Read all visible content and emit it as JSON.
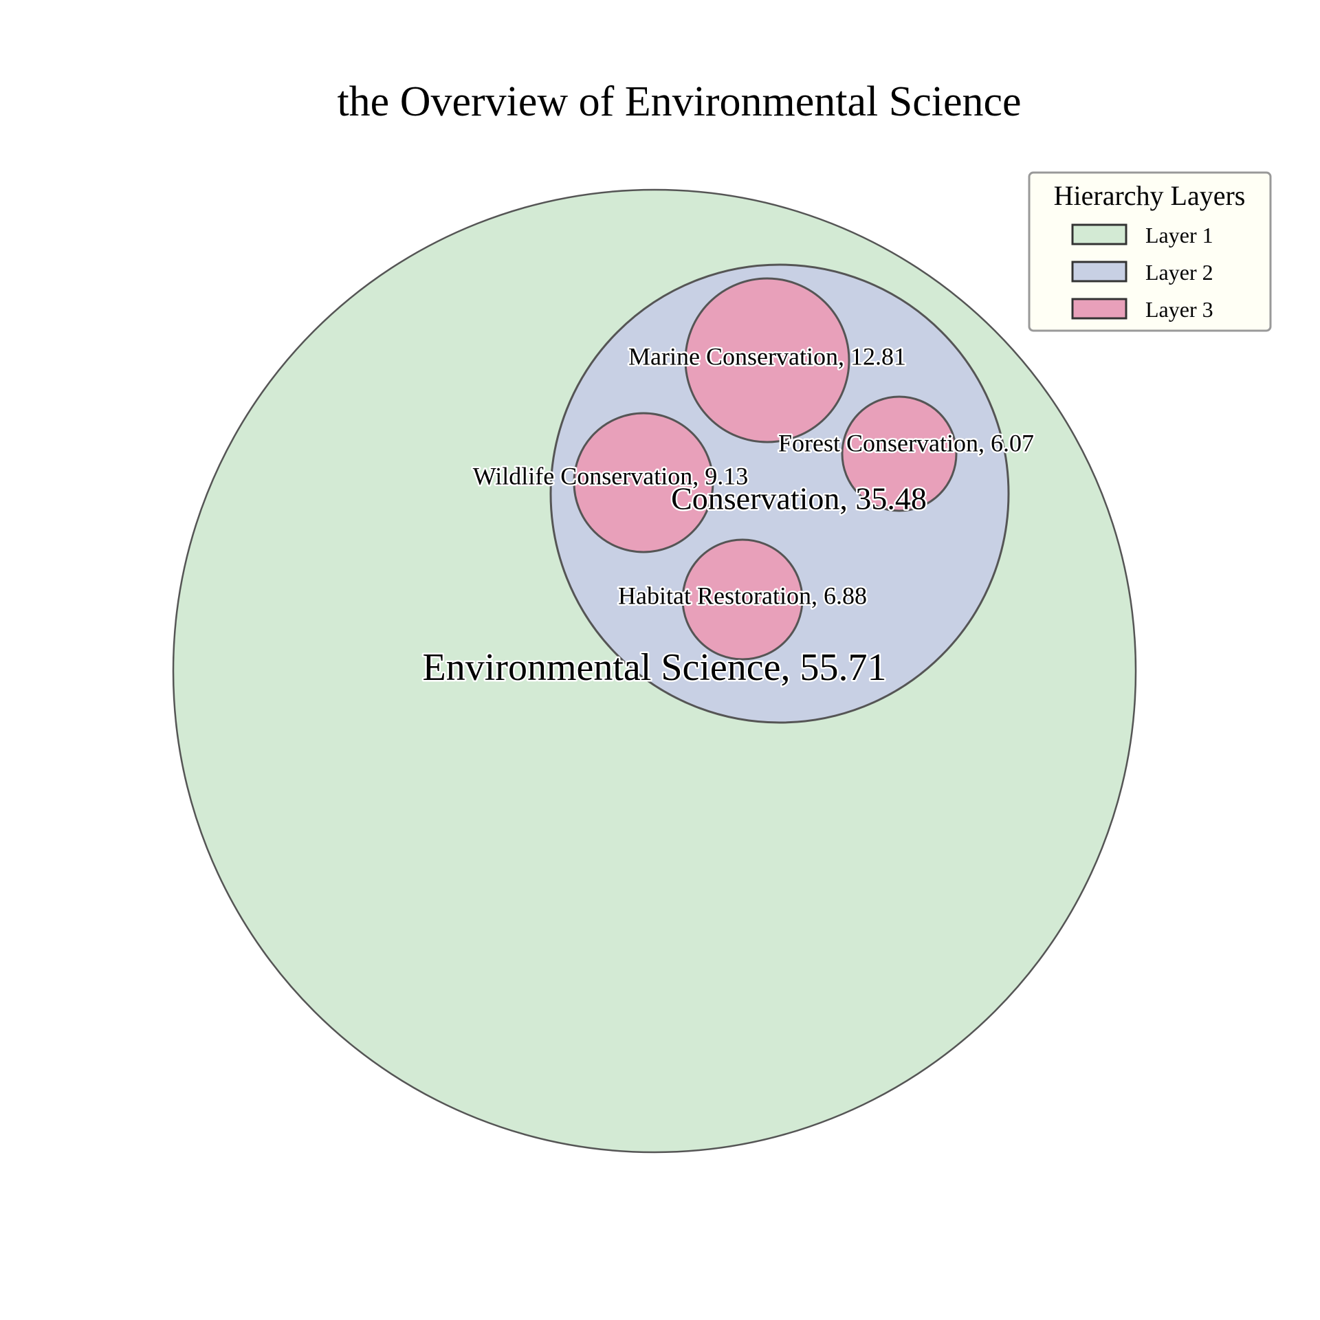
{
  "chart_data": {
    "type": "circle-packing",
    "title": "the Overview of Environmental Science",
    "nodes": [
      {
        "name": "Environmental Science",
        "value": 55.71,
        "layer": 1,
        "label": "Environmental Science, 55.71"
      },
      {
        "name": "Conservation",
        "value": 35.48,
        "layer": 2,
        "parent": "Environmental Science",
        "label": "Conservation, 35.48"
      },
      {
        "name": "Marine Conservation",
        "value": 12.81,
        "layer": 3,
        "parent": "Conservation",
        "label": "Marine Conservation, 12.81"
      },
      {
        "name": "Wildlife Conservation",
        "value": 9.13,
        "layer": 3,
        "parent": "Conservation",
        "label": "Wildlife Conservation, 9.13"
      },
      {
        "name": "Forest Conservation",
        "value": 6.07,
        "layer": 3,
        "parent": "Conservation",
        "label": "Forest Conservation, 6.07"
      },
      {
        "name": "Habitat Restoration",
        "value": 6.88,
        "layer": 3,
        "parent": "Conservation",
        "label": "Habitat Restoration, 6.88"
      }
    ],
    "legend": {
      "title": "Hierarchy Layers",
      "placement": "top-right",
      "items": [
        {
          "label": "Layer 1",
          "color": "#d3ead4"
        },
        {
          "label": "Layer 2",
          "color": "#c8d0e4"
        },
        {
          "label": "Layer 3",
          "color": "#e8a0ba"
        }
      ]
    },
    "colors": {
      "edge": "#555555",
      "legend_bg": "#fffff5",
      "legend_border": "#999999"
    }
  }
}
